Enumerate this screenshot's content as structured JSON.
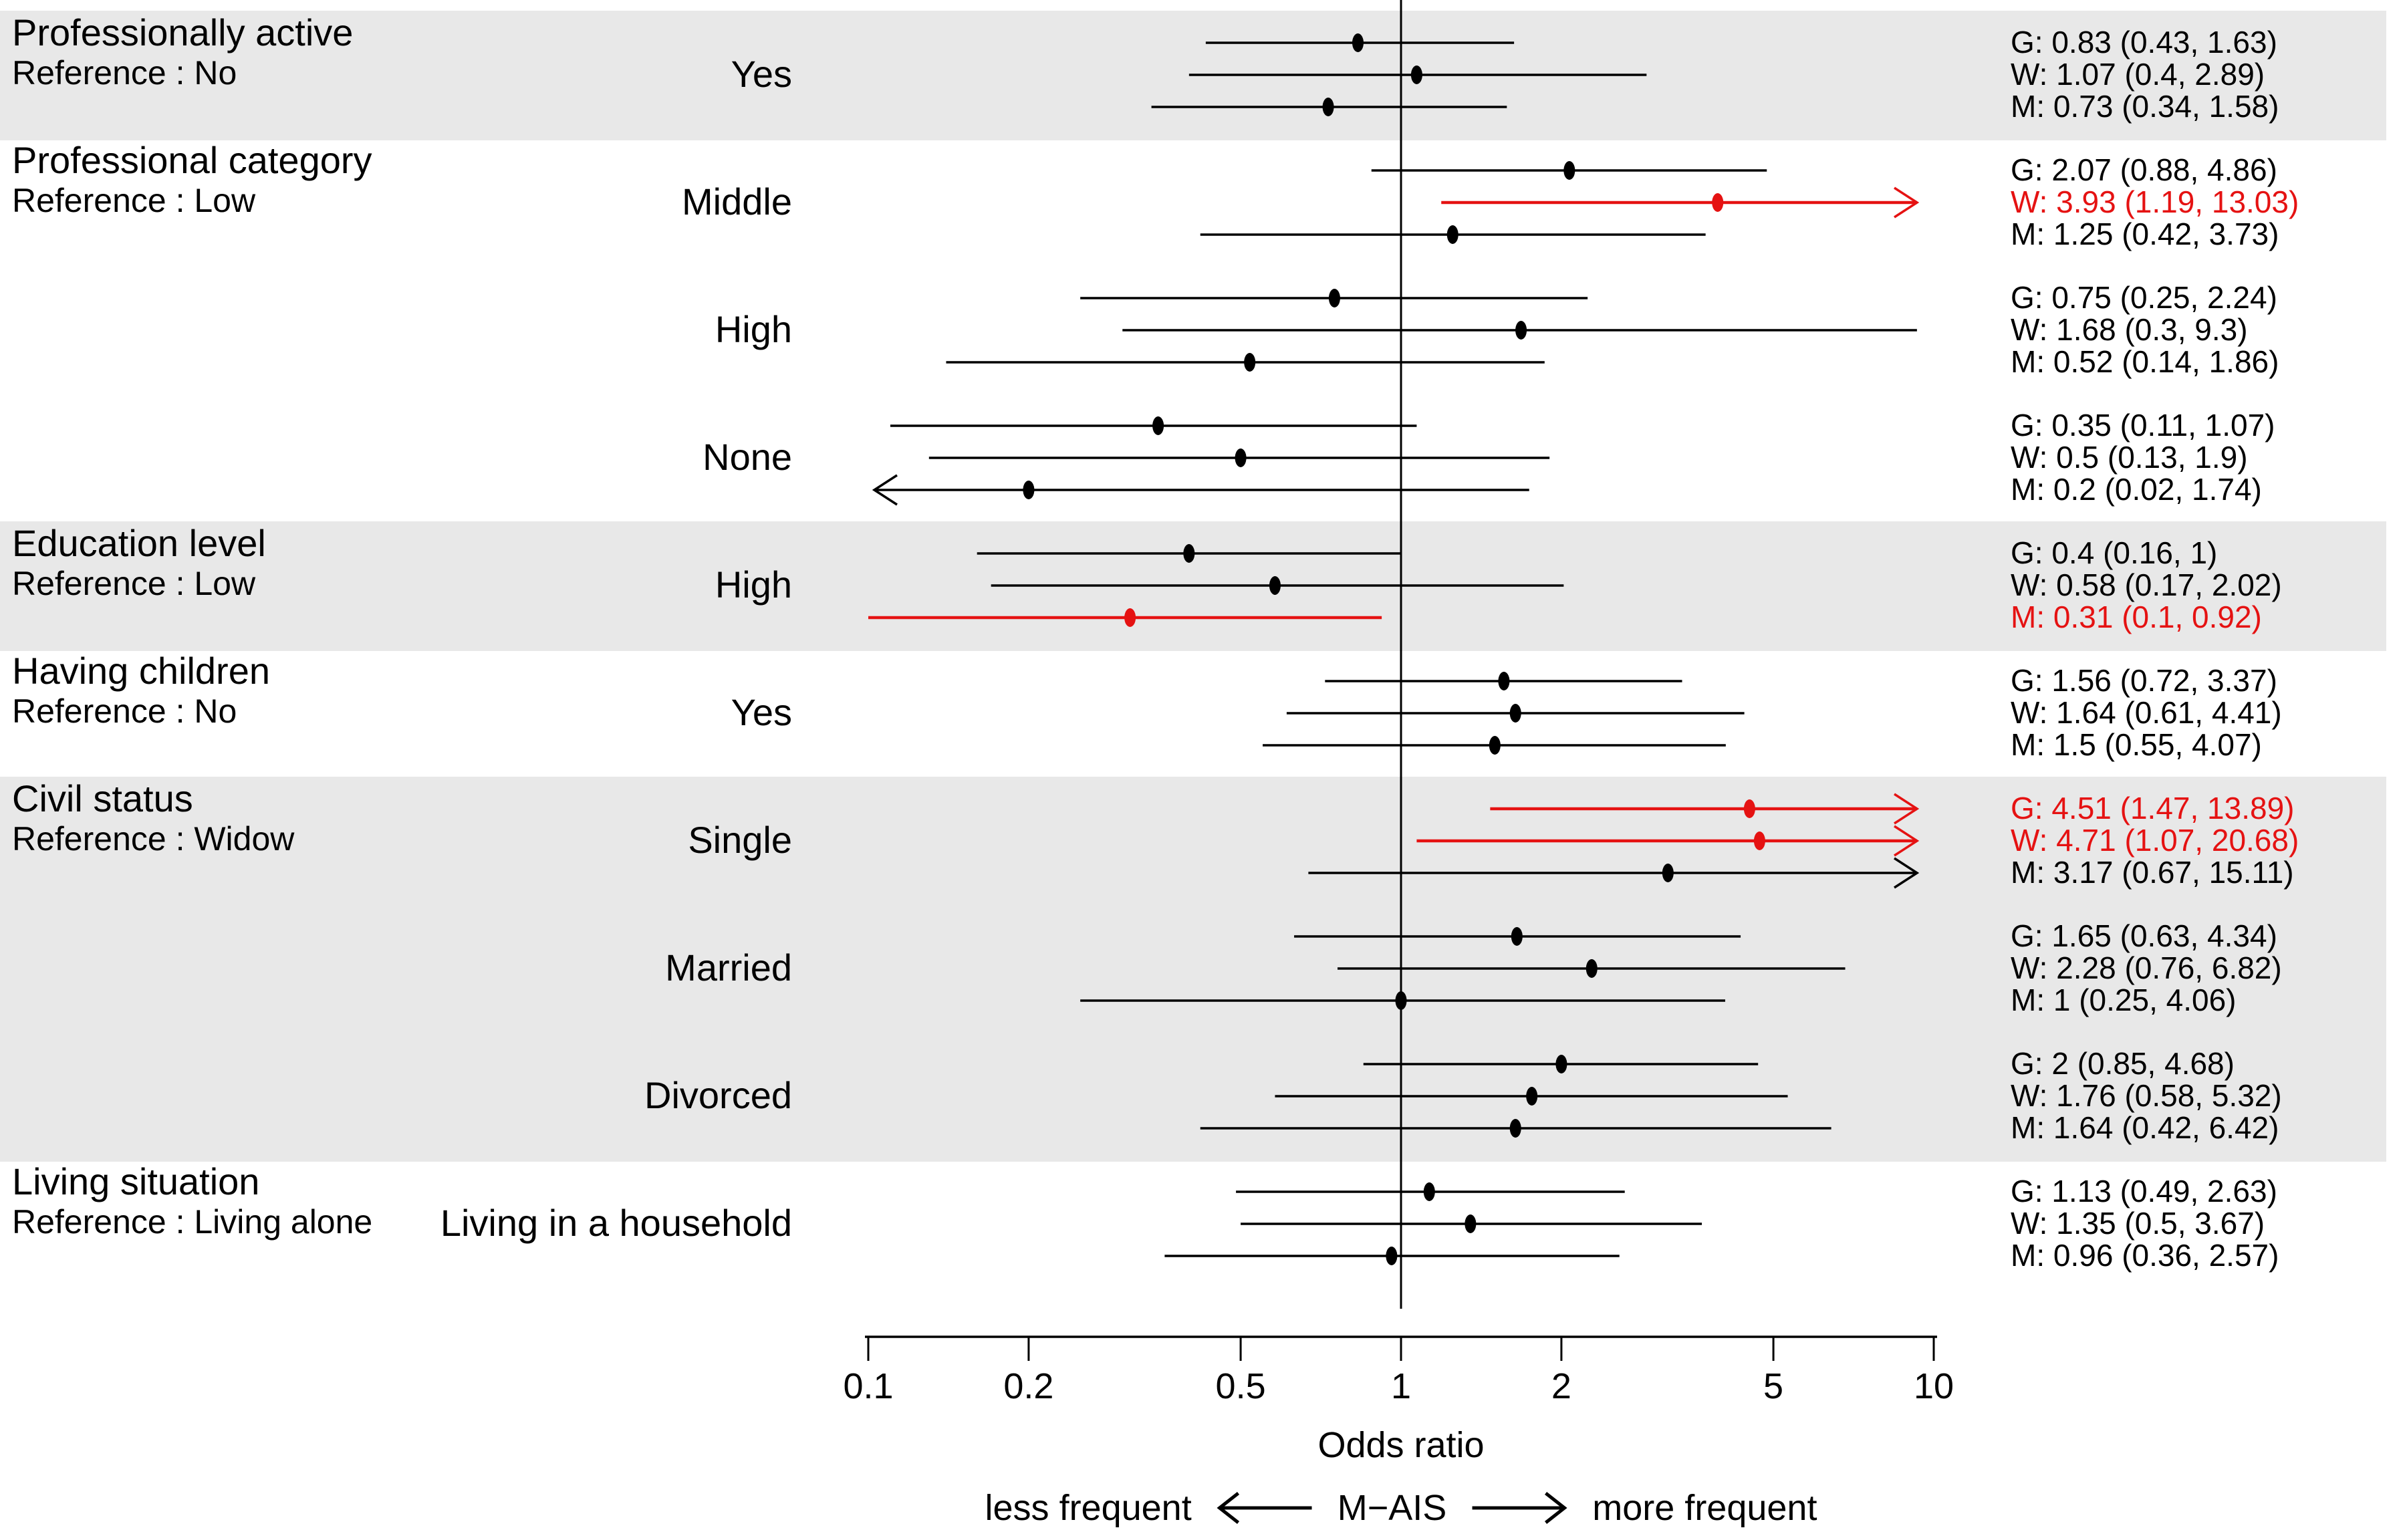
{
  "colors": {
    "red": "#e51212",
    "black": "#000000",
    "band": "#e8e8e8"
  },
  "axis": {
    "label": "Odds ratio",
    "scale": "log10",
    "min": 0.1,
    "max": 10,
    "reference_line": 1,
    "ticks": [
      {
        "label": "0.1",
        "value": 0.1
      },
      {
        "label": "0.2",
        "value": 0.2
      },
      {
        "label": "0.5",
        "value": 0.5
      },
      {
        "label": "1",
        "value": 1
      },
      {
        "label": "2",
        "value": 2
      },
      {
        "label": "5",
        "value": 5
      },
      {
        "label": "10",
        "value": 10
      }
    ]
  },
  "caption": {
    "left": "less frequent",
    "arrow_left_icon": "long-left-arrow",
    "center": "M−AIS",
    "arrow_right_icon": "long-right-arrow",
    "right": "more frequent"
  },
  "chart_data": {
    "type": "forest",
    "series_names": [
      "G",
      "W",
      "M"
    ],
    "groups": [
      {
        "title": "Professionally active",
        "reference": "Reference : No",
        "shaded": true,
        "rows": [
          {
            "label": "Yes",
            "estimates": [
              {
                "series": "G",
                "or": 0.83,
                "lo": 0.43,
                "hi": 1.63,
                "text": "G: 0.83 (0.43, 1.63)",
                "highlight": false,
                "arrow": null
              },
              {
                "series": "W",
                "or": 1.07,
                "lo": 0.4,
                "hi": 2.89,
                "text": "W: 1.07 (0.4, 2.89)",
                "highlight": false,
                "arrow": null
              },
              {
                "series": "M",
                "or": 0.73,
                "lo": 0.34,
                "hi": 1.58,
                "text": "M: 0.73 (0.34, 1.58)",
                "highlight": false,
                "arrow": null
              }
            ]
          }
        ]
      },
      {
        "title": "Professional category",
        "reference": "Reference : Low",
        "shaded": false,
        "rows": [
          {
            "label": "Middle",
            "estimates": [
              {
                "series": "G",
                "or": 2.07,
                "lo": 0.88,
                "hi": 4.86,
                "text": "G: 2.07 (0.88, 4.86)",
                "highlight": false,
                "arrow": null
              },
              {
                "series": "W",
                "or": 3.93,
                "lo": 1.19,
                "hi": 13.03,
                "text": "W: 3.93 (1.19, 13.03)",
                "highlight": true,
                "arrow": "right"
              },
              {
                "series": "M",
                "or": 1.25,
                "lo": 0.42,
                "hi": 3.73,
                "text": "M: 1.25 (0.42, 3.73)",
                "highlight": false,
                "arrow": null
              }
            ]
          },
          {
            "label": "High",
            "estimates": [
              {
                "series": "G",
                "or": 0.75,
                "lo": 0.25,
                "hi": 2.24,
                "text": "G: 0.75 (0.25, 2.24)",
                "highlight": false,
                "arrow": null
              },
              {
                "series": "W",
                "or": 1.68,
                "lo": 0.3,
                "hi": 9.3,
                "text": "W: 1.68 (0.3, 9.3)",
                "highlight": false,
                "arrow": null
              },
              {
                "series": "M",
                "or": 0.52,
                "lo": 0.14,
                "hi": 1.86,
                "text": "M: 0.52 (0.14, 1.86)",
                "highlight": false,
                "arrow": null
              }
            ]
          },
          {
            "label": "None",
            "estimates": [
              {
                "series": "G",
                "or": 0.35,
                "lo": 0.11,
                "hi": 1.07,
                "text": "G: 0.35 (0.11, 1.07)",
                "highlight": false,
                "arrow": null
              },
              {
                "series": "W",
                "or": 0.5,
                "lo": 0.13,
                "hi": 1.9,
                "text": "W: 0.5 (0.13, 1.9)",
                "highlight": false,
                "arrow": null
              },
              {
                "series": "M",
                "or": 0.2,
                "lo": 0.02,
                "hi": 1.74,
                "text": "M: 0.2 (0.02, 1.74)",
                "highlight": false,
                "arrow": "left"
              }
            ]
          }
        ]
      },
      {
        "title": "Education level",
        "reference": "Reference : Low",
        "shaded": true,
        "rows": [
          {
            "label": "High",
            "estimates": [
              {
                "series": "G",
                "or": 0.4,
                "lo": 0.16,
                "hi": 1,
                "text": "G: 0.4 (0.16, 1)",
                "highlight": false,
                "arrow": null
              },
              {
                "series": "W",
                "or": 0.58,
                "lo": 0.17,
                "hi": 2.02,
                "text": "W: 0.58 (0.17, 2.02)",
                "highlight": false,
                "arrow": null
              },
              {
                "series": "M",
                "or": 0.31,
                "lo": 0.1,
                "hi": 0.92,
                "text": "M: 0.31 (0.1, 0.92)",
                "highlight": true,
                "arrow": null
              }
            ]
          }
        ]
      },
      {
        "title": "Having children",
        "reference": "Reference : No",
        "shaded": false,
        "rows": [
          {
            "label": "Yes",
            "estimates": [
              {
                "series": "G",
                "or": 1.56,
                "lo": 0.72,
                "hi": 3.37,
                "text": "G: 1.56 (0.72, 3.37)",
                "highlight": false,
                "arrow": null
              },
              {
                "series": "W",
                "or": 1.64,
                "lo": 0.61,
                "hi": 4.41,
                "text": "W: 1.64 (0.61, 4.41)",
                "highlight": false,
                "arrow": null
              },
              {
                "series": "M",
                "or": 1.5,
                "lo": 0.55,
                "hi": 4.07,
                "text": "M: 1.5 (0.55, 4.07)",
                "highlight": false,
                "arrow": null
              }
            ]
          }
        ]
      },
      {
        "title": "Civil status",
        "reference": "Reference : Widow",
        "shaded": true,
        "rows": [
          {
            "label": "Single",
            "estimates": [
              {
                "series": "G",
                "or": 4.51,
                "lo": 1.47,
                "hi": 13.89,
                "text": "G: 4.51 (1.47, 13.89)",
                "highlight": true,
                "arrow": "right"
              },
              {
                "series": "W",
                "or": 4.71,
                "lo": 1.07,
                "hi": 20.68,
                "text": "W: 4.71 (1.07, 20.68)",
                "highlight": true,
                "arrow": "right"
              },
              {
                "series": "M",
                "or": 3.17,
                "lo": 0.67,
                "hi": 15.11,
                "text": "M: 3.17 (0.67, 15.11)",
                "highlight": false,
                "arrow": "right"
              }
            ]
          },
          {
            "label": "Married",
            "estimates": [
              {
                "series": "G",
                "or": 1.65,
                "lo": 0.63,
                "hi": 4.34,
                "text": "G: 1.65 (0.63, 4.34)",
                "highlight": false,
                "arrow": null
              },
              {
                "series": "W",
                "or": 2.28,
                "lo": 0.76,
                "hi": 6.82,
                "text": "W: 2.28 (0.76, 6.82)",
                "highlight": false,
                "arrow": null
              },
              {
                "series": "M",
                "or": 1,
                "lo": 0.25,
                "hi": 4.06,
                "text": "M: 1 (0.25, 4.06)",
                "highlight": false,
                "arrow": null
              }
            ]
          },
          {
            "label": "Divorced",
            "estimates": [
              {
                "series": "G",
                "or": 2,
                "lo": 0.85,
                "hi": 4.68,
                "text": "G: 2 (0.85, 4.68)",
                "highlight": false,
                "arrow": null
              },
              {
                "series": "W",
                "or": 1.76,
                "lo": 0.58,
                "hi": 5.32,
                "text": "W: 1.76 (0.58, 5.32)",
                "highlight": false,
                "arrow": null
              },
              {
                "series": "M",
                "or": 1.64,
                "lo": 0.42,
                "hi": 6.42,
                "text": "M: 1.64 (0.42, 6.42)",
                "highlight": false,
                "arrow": null
              }
            ]
          }
        ]
      },
      {
        "title": "Living situation",
        "reference": "Reference : Living alone",
        "shaded": false,
        "rows": [
          {
            "label": "Living in a household",
            "estimates": [
              {
                "series": "G",
                "or": 1.13,
                "lo": 0.49,
                "hi": 2.63,
                "text": "G: 1.13 (0.49, 2.63)",
                "highlight": false,
                "arrow": null
              },
              {
                "series": "W",
                "or": 1.35,
                "lo": 0.5,
                "hi": 3.67,
                "text": "W: 1.35 (0.5, 3.67)",
                "highlight": false,
                "arrow": null
              },
              {
                "series": "M",
                "or": 0.96,
                "lo": 0.36,
                "hi": 2.57,
                "text": "M: 0.96 (0.36, 2.57)",
                "highlight": false,
                "arrow": null
              }
            ]
          }
        ]
      }
    ]
  }
}
